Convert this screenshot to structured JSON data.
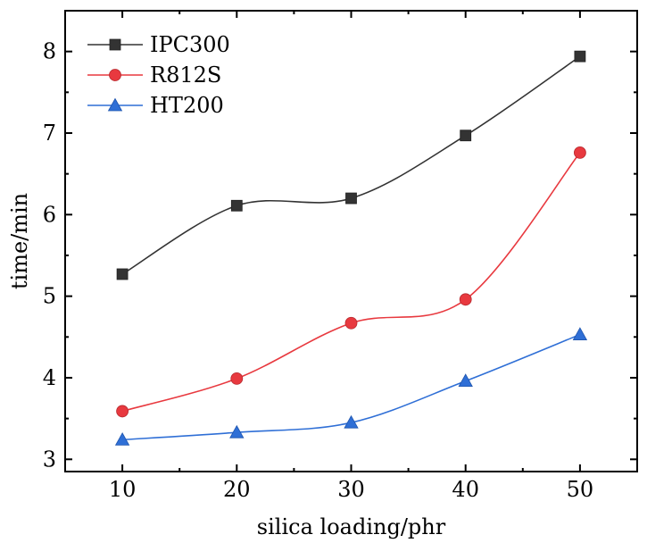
{
  "chart_data": {
    "type": "line",
    "xlabel": "silica loading/phr",
    "ylabel": "time/min",
    "xlim": [
      5,
      55
    ],
    "ylim": [
      2.85,
      8.5
    ],
    "x_ticks": [
      10,
      20,
      30,
      40,
      50
    ],
    "y_ticks": [
      3,
      4,
      5,
      6,
      7,
      8
    ],
    "grid": false,
    "legend_position": "top-left",
    "x": [
      10,
      20,
      30,
      40,
      50
    ],
    "series": [
      {
        "name": "IPC300",
        "values": [
          5.27,
          6.11,
          6.2,
          6.97,
          7.94
        ],
        "color": "#333333",
        "marker": "square"
      },
      {
        "name": "R812S",
        "values": [
          3.59,
          3.99,
          4.67,
          4.96,
          6.76
        ],
        "color": "#e8393f",
        "marker": "circle"
      },
      {
        "name": "HT200",
        "values": [
          3.24,
          3.33,
          3.45,
          3.96,
          4.53
        ],
        "color": "#2f6fd6",
        "marker": "triangle"
      }
    ]
  }
}
